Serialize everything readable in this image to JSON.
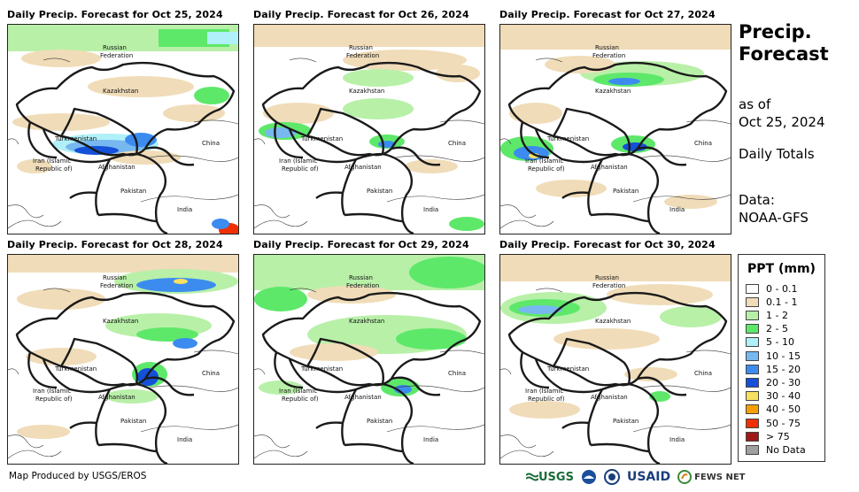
{
  "panels": [
    {
      "title": "Daily Precip. Forecast for Oct 25, 2024"
    },
    {
      "title": "Daily Precip. Forecast for Oct 26, 2024"
    },
    {
      "title": "Daily Precip. Forecast for Oct 27, 2024"
    },
    {
      "title": "Daily Precip. Forecast for Oct 28, 2024"
    },
    {
      "title": "Daily Precip. Forecast for Oct 29, 2024"
    },
    {
      "title": "Daily Precip. Forecast for Oct 30, 2024"
    }
  ],
  "countries": {
    "russia_1": "Russian",
    "russia_2": "Federation",
    "kazakhstan": "Kazakhstan",
    "turkmenistan": "Turkmenistan",
    "iran_1": "Iran  (Islamic",
    "iran_2": "Republic of)",
    "afghanistan": "Afghanistan",
    "pakistan": "Pakistan",
    "india": "India",
    "china": "China"
  },
  "side": {
    "title_line1": "Precip.",
    "title_line2": "Forecast",
    "asof_line1": "as of",
    "asof_line2": "Oct 25, 2024",
    "totals": "Daily Totals",
    "data_line1": "Data:",
    "data_line2": "NOAA-GFS"
  },
  "legend": {
    "title": "PPT (mm)",
    "items": [
      {
        "label": "0 - 0.1",
        "color": "#ffffff"
      },
      {
        "label": "0.1 - 1",
        "color": "#f0dcb8"
      },
      {
        "label": "1 - 2",
        "color": "#b8f0a8"
      },
      {
        "label": "2 - 5",
        "color": "#5ee86a"
      },
      {
        "label": "5 - 10",
        "color": "#b0f0f8"
      },
      {
        "label": "10 - 15",
        "color": "#78b8f0"
      },
      {
        "label": "15 - 20",
        "color": "#3c8cf0"
      },
      {
        "label": "20 - 30",
        "color": "#1450d8"
      },
      {
        "label": "30 - 40",
        "color": "#f8e060"
      },
      {
        "label": "40 - 50",
        "color": "#f8a000"
      },
      {
        "label": "50 - 75",
        "color": "#f03000"
      },
      {
        "label": "> 75",
        "color": "#a01818"
      },
      {
        "label": "No Data",
        "color": "#a0a0a0"
      }
    ]
  },
  "footer": "Map Produced by USGS/EROS",
  "logos": {
    "usgs": "USGS",
    "usaid": "USAID",
    "fewsnet": "FEWS NET"
  }
}
